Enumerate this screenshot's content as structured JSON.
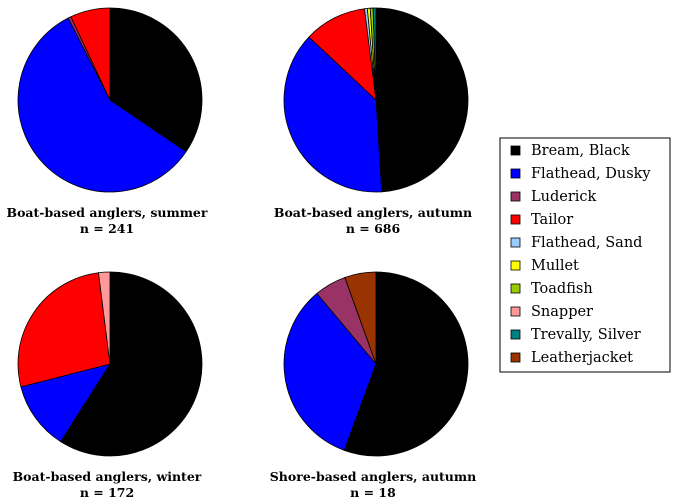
{
  "chart_data": [
    {
      "type": "pie",
      "title": "Boat-based anglers, summer",
      "subtitle": "n = 241",
      "slices": [
        {
          "label": "Bream, Black",
          "value": 34.5
        },
        {
          "label": "Flathead, Dusky",
          "value": 58.0
        },
        {
          "label": "Luderick",
          "value": 0.5
        },
        {
          "label": "Tailor",
          "value": 7.0
        }
      ]
    },
    {
      "type": "pie",
      "title": "Boat-based anglers, autumn",
      "subtitle": "n = 686",
      "slices": [
        {
          "label": "Bream, Black",
          "value": 49.0
        },
        {
          "label": "Flathead, Dusky",
          "value": 38.0
        },
        {
          "label": "Tailor",
          "value": 11.0
        },
        {
          "label": "Flathead, Sand",
          "value": 0.5
        },
        {
          "label": "Mullet",
          "value": 0.5
        },
        {
          "label": "Toadfish",
          "value": 0.5
        },
        {
          "label": "Trevally, Silver",
          "value": 0.5
        }
      ]
    },
    {
      "type": "pie",
      "title": "Boat-based anglers, winter",
      "subtitle": "n = 172",
      "slices": [
        {
          "label": "Bream, Black",
          "value": 59.0
        },
        {
          "label": "Flathead, Dusky",
          "value": 12.0
        },
        {
          "label": "Tailor",
          "value": 27.0
        },
        {
          "label": "Snapper",
          "value": 2.0
        }
      ]
    },
    {
      "type": "pie",
      "title": "Shore-based anglers, autumn",
      "subtitle": "n = 18",
      "slices": [
        {
          "label": "Bream, Black",
          "value": 55.6
        },
        {
          "label": "Flathead, Dusky",
          "value": 33.3
        },
        {
          "label": "Luderick",
          "value": 5.6
        },
        {
          "label": "Leatherjacket",
          "value": 5.5
        }
      ]
    }
  ],
  "legend": [
    {
      "label": "Bream, Black",
      "color": "#000000"
    },
    {
      "label": "Flathead, Dusky",
      "color": "#0000ff"
    },
    {
      "label": "Luderick",
      "color": "#993366"
    },
    {
      "label": "Tailor",
      "color": "#ff0000"
    },
    {
      "label": "Flathead, Sand",
      "color": "#99ccff"
    },
    {
      "label": "Mullet",
      "color": "#ffff00"
    },
    {
      "label": "Toadfish",
      "color": "#99cc00"
    },
    {
      "label": "Snapper",
      "color": "#ff9999"
    },
    {
      "label": "Trevally, Silver",
      "color": "#008080"
    },
    {
      "label": "Leatherjacket",
      "color": "#993300"
    }
  ]
}
